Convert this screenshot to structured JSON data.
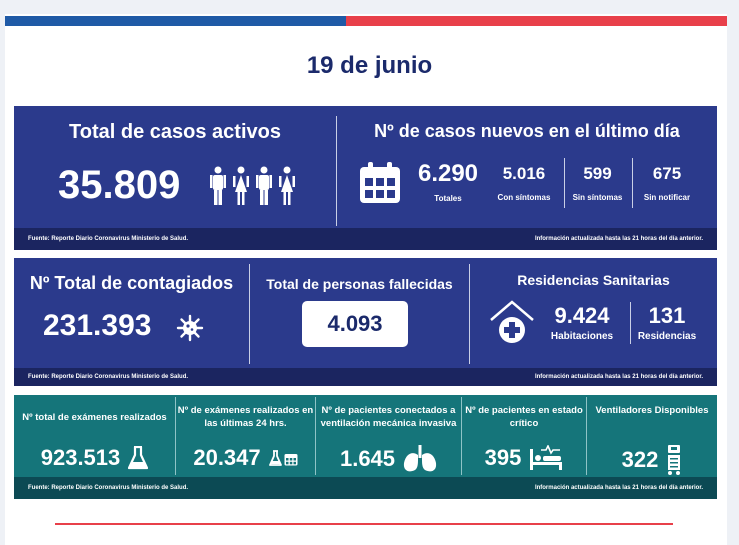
{
  "date": "19 de junio",
  "active": {
    "title": "Total de casos activos",
    "value": "35.809",
    "source": "Fuente: Reporte Diario Coronavirus Ministerio de Salud.",
    "icons": [
      "man-icon",
      "woman-icon",
      "man-icon",
      "woman-icon"
    ]
  },
  "new_cases": {
    "title": "Nº de casos nuevos en el último día",
    "total_value": "6.290",
    "total_label": "Totales",
    "sympt_value": "5.016",
    "sympt_label": "Con síntomas",
    "asympt_value": "599",
    "asympt_label": "Sin síntomas",
    "unreported_value": "675",
    "unreported_label": "Sin notificar",
    "updated": "Información actualizada hasta las 21 horas del día anterior."
  },
  "contagiados": {
    "title": "Nº Total de contagiados",
    "value": "231.393"
  },
  "fallecidos": {
    "title": "Total de personas fallecidas",
    "value": "4.093"
  },
  "residencias": {
    "title": "Residencias Sanitarias",
    "habitaciones_value": "9.424",
    "habitaciones_label": "Habitaciones",
    "residencias_value": "131",
    "residencias_label": "Residencias"
  },
  "row2_footer": {
    "source": "Fuente: Reporte Diario Coronavirus Ministerio de Salud.",
    "updated": "Información actualizada hasta las 21 horas  del día anterior."
  },
  "tests": {
    "total_label": "Nº total de exámenes realizados",
    "total_value": "923.513",
    "last24_label": "Nº de exámenes realizados en las últimas 24 hrs.",
    "last24_value": "20.347",
    "ventilated_label": "Nº de pacientes conectados a ventilación mecánica invasiva",
    "ventilated_value": "1.645",
    "critical_label": "Nº de pacientes  en estado crítico",
    "critical_value": "395",
    "vent_available_label": "Ventiladores Disponibles",
    "vent_available_value": "322"
  },
  "row3_footer": {
    "source": "Fuente: Reporte Diario Coronavirus Ministerio de Salud.",
    "updated": "Información actualizada hasta las 21 horas  del día anterior."
  },
  "colors": {
    "navy": "#2b3a8c",
    "dark_navy": "#1b2560",
    "teal": "#15757a",
    "red": "#e8404a",
    "blue": "#1f5aa6"
  }
}
